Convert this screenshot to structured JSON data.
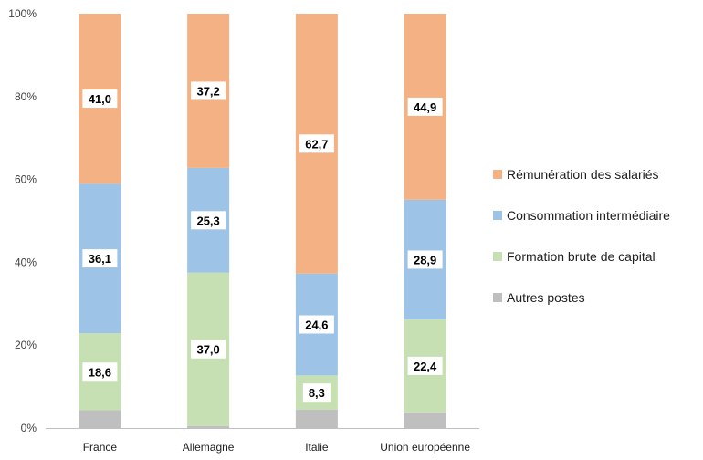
{
  "chart_data": {
    "type": "bar",
    "stacked": true,
    "percent": true,
    "categories": [
      "France",
      "Allemagne",
      "Italie",
      "Union européenne"
    ],
    "series": [
      {
        "name": "Autres postes",
        "color": "#bfbfbf",
        "values": [
          4.3,
          0.5,
          4.4,
          3.8
        ],
        "labels": [
          "",
          "",
          "",
          ""
        ]
      },
      {
        "name": "Formation brute de capital",
        "color": "#c6e0b4",
        "values": [
          18.6,
          37.0,
          8.3,
          22.4
        ],
        "labels": [
          "18,6",
          "37,0",
          "8,3",
          "22,4"
        ]
      },
      {
        "name": "Consommation intermédiaire",
        "color": "#9dc3e6",
        "values": [
          36.1,
          25.3,
          24.6,
          28.9
        ],
        "labels": [
          "36,1",
          "25,3",
          "24,6",
          "28,9"
        ]
      },
      {
        "name": "Rémunération des salariés",
        "color": "#f4b183",
        "values": [
          41.0,
          37.2,
          62.7,
          44.9
        ],
        "labels": [
          "41,0",
          "37,2",
          "62,7",
          "44,9"
        ]
      }
    ],
    "yticks": [
      "0%",
      "20%",
      "40%",
      "60%",
      "80%",
      "100%"
    ],
    "ylim": [
      0,
      100
    ],
    "legend": "right",
    "legend_order": [
      "Rémunération des salariés",
      "Consommation intermédiaire",
      "Formation brute de capital",
      "Autres postes"
    ],
    "grid": false
  }
}
